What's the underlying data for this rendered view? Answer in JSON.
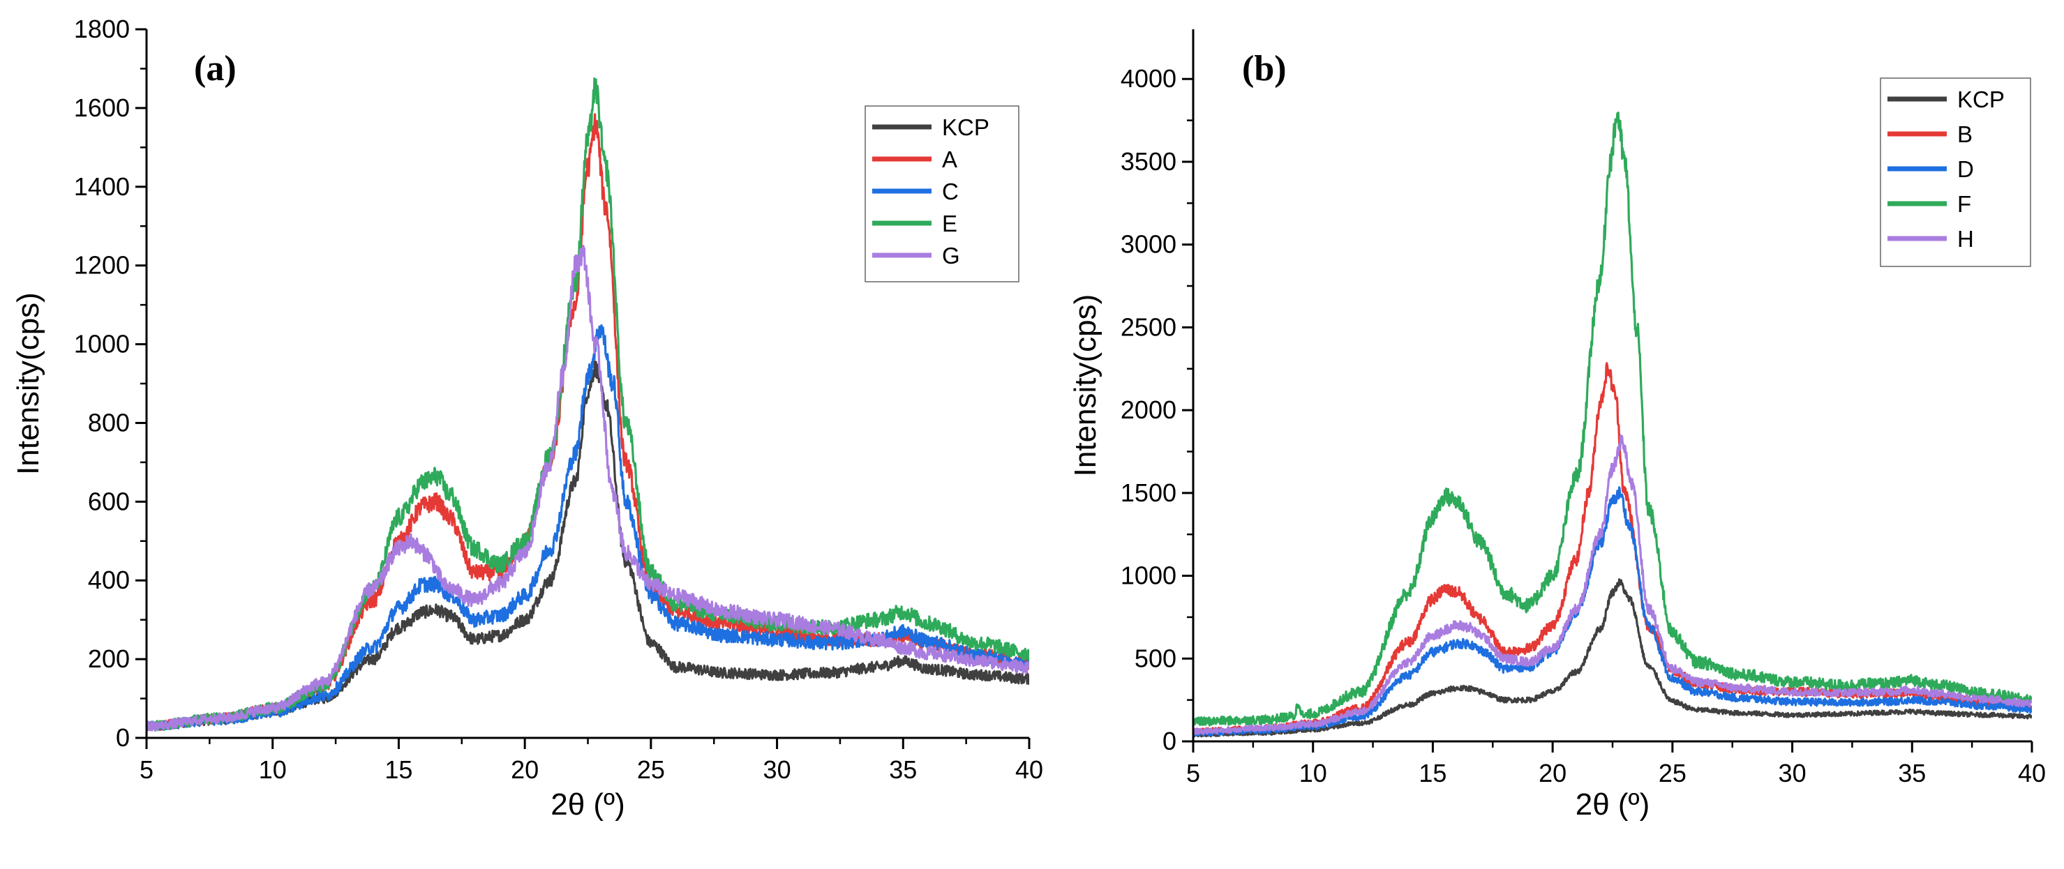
{
  "chart_data": [
    {
      "type": "line",
      "panel_label": "(a)",
      "xlabel": "2θ (º)",
      "ylabel": "Intensity(cps)",
      "xlim": [
        5,
        40
      ],
      "ylim": [
        0,
        1800
      ],
      "xticks": [
        5,
        10,
        15,
        20,
        25,
        30,
        35,
        40
      ],
      "yticks": [
        0,
        200,
        400,
        600,
        800,
        1000,
        1200,
        1400,
        1600,
        1800
      ],
      "legend_position": "top-right",
      "series": [
        {
          "name": "KCP",
          "color": "#404040",
          "noise": 12,
          "x": [
            5,
            8,
            10,
            12,
            14,
            15,
            16,
            16.5,
            17,
            18,
            19,
            20,
            21,
            22,
            22.5,
            22.8,
            23.2,
            24,
            25,
            26,
            28,
            30,
            32,
            34,
            35,
            36,
            38,
            40
          ],
          "y": [
            30,
            45,
            65,
            100,
            200,
            280,
            320,
            325,
            310,
            250,
            260,
            300,
            400,
            650,
            880,
            940,
            850,
            450,
            240,
            180,
            165,
            160,
            165,
            180,
            195,
            175,
            160,
            150
          ]
        },
        {
          "name": "A",
          "color": "#e53935",
          "noise": 14,
          "x": [
            5,
            8,
            10,
            12,
            14,
            15,
            16,
            16.5,
            17,
            18,
            19,
            20,
            21,
            22,
            22.5,
            22.8,
            23.2,
            24,
            25,
            26,
            28,
            30,
            32,
            34,
            35,
            36,
            38,
            40
          ],
          "y": [
            30,
            50,
            75,
            130,
            350,
            500,
            590,
            600,
            560,
            420,
            420,
            500,
            700,
            1100,
            1450,
            1560,
            1350,
            700,
            380,
            320,
            290,
            270,
            250,
            250,
            260,
            240,
            210,
            190
          ]
        },
        {
          "name": "C",
          "color": "#1e6fe0",
          "noise": 14,
          "x": [
            5,
            8,
            10,
            12,
            14,
            15,
            16,
            16.5,
            17,
            18,
            19,
            20,
            21,
            22,
            22.5,
            23,
            23.5,
            24,
            25,
            26,
            28,
            30,
            32,
            34,
            35,
            36,
            38,
            40
          ],
          "y": [
            30,
            45,
            65,
            105,
            230,
            330,
            390,
            390,
            365,
            300,
            310,
            360,
            480,
            720,
            920,
            1040,
            900,
            600,
            360,
            290,
            260,
            250,
            240,
            250,
            270,
            245,
            210,
            185
          ]
        },
        {
          "name": "E",
          "color": "#2eaa5a",
          "noise": 15,
          "x": [
            5,
            8,
            10,
            12,
            14,
            15,
            16,
            16.5,
            17,
            18,
            19,
            20,
            21,
            22,
            22.5,
            22.8,
            23.2,
            24,
            25,
            26,
            28,
            30,
            32,
            34,
            35,
            36,
            38,
            40
          ],
          "y": [
            30,
            50,
            75,
            130,
            380,
            560,
            650,
            665,
            620,
            480,
            440,
            500,
            720,
            1150,
            1520,
            1650,
            1450,
            800,
            420,
            340,
            310,
            290,
            280,
            300,
            320,
            290,
            240,
            215
          ]
        },
        {
          "name": "G",
          "color": "#a97de0",
          "noise": 14,
          "x": [
            5,
            8,
            10,
            12,
            14,
            15,
            15.5,
            16,
            17,
            18,
            19,
            20,
            21,
            21.5,
            22,
            22.3,
            22.8,
            23.5,
            24,
            25,
            26,
            28,
            30,
            32,
            34,
            35,
            36,
            38,
            40
          ],
          "y": [
            30,
            50,
            75,
            140,
            380,
            480,
            500,
            470,
            380,
            350,
            390,
            470,
            700,
            920,
            1200,
            1230,
            1000,
            620,
            470,
            390,
            360,
            320,
            300,
            280,
            250,
            230,
            215,
            195,
            180
          ]
        }
      ]
    },
    {
      "type": "line",
      "panel_label": "(b)",
      "xlabel": "2θ (º)",
      "ylabel": "Intensity(cps)",
      "xlim": [
        5,
        40
      ],
      "ylim": [
        0,
        4300
      ],
      "xticks": [
        5,
        10,
        15,
        20,
        25,
        30,
        35,
        40
      ],
      "yticks": [
        0,
        500,
        1000,
        1500,
        2000,
        2500,
        3000,
        3500,
        4000
      ],
      "legend_position": "top-right",
      "series": [
        {
          "name": "KCP",
          "color": "#404040",
          "noise": 12,
          "x": [
            5,
            8,
            10,
            12,
            14,
            15,
            16,
            16.5,
            17,
            18,
            19,
            20,
            21,
            22,
            22.5,
            22.8,
            23.2,
            24,
            25,
            26,
            28,
            30,
            32,
            34,
            35,
            36,
            38,
            40
          ],
          "y": [
            40,
            50,
            70,
            110,
            220,
            290,
            320,
            320,
            300,
            250,
            250,
            300,
            420,
            680,
            900,
            960,
            860,
            450,
            240,
            190,
            170,
            160,
            165,
            175,
            180,
            170,
            160,
            150
          ]
        },
        {
          "name": "B",
          "color": "#e53935",
          "noise": 20,
          "x": [
            5,
            8,
            10,
            12,
            14,
            15,
            15.5,
            16,
            17,
            18,
            19,
            20,
            21,
            21.5,
            22,
            22.3,
            22.6,
            23,
            24,
            25,
            26,
            28,
            30,
            32,
            34,
            35,
            36,
            38,
            40
          ],
          "y": [
            60,
            80,
            110,
            200,
            600,
            860,
            920,
            900,
            740,
            540,
            560,
            700,
            1100,
            1500,
            2050,
            2250,
            2100,
            1500,
            700,
            430,
            350,
            310,
            300,
            290,
            290,
            290,
            270,
            240,
            220
          ]
        },
        {
          "name": "D",
          "color": "#1e6fe0",
          "noise": 18,
          "x": [
            5,
            8,
            10,
            12,
            14,
            15,
            16,
            16.5,
            17,
            18,
            19,
            20,
            21,
            22,
            22.5,
            22.8,
            23.2,
            24,
            25,
            26,
            28,
            30,
            32,
            34,
            35,
            36,
            38,
            40
          ],
          "y": [
            50,
            65,
            90,
            150,
            400,
            540,
            590,
            590,
            550,
            440,
            450,
            540,
            780,
            1200,
            1450,
            1500,
            1300,
            700,
            380,
            300,
            260,
            240,
            235,
            240,
            250,
            240,
            215,
            195
          ]
        },
        {
          "name": "F",
          "color": "#2eaa5a",
          "noise": 25,
          "x": [
            5,
            8,
            9.2,
            9.4,
            9.6,
            10,
            12,
            14,
            15,
            15.5,
            16,
            17,
            18,
            19,
            20,
            21,
            22,
            22.4,
            22.7,
            23,
            23.5,
            24,
            25,
            26,
            28,
            30,
            32,
            34,
            35,
            36,
            38,
            40
          ],
          "y": [
            120,
            130,
            150,
            230,
            150,
            170,
            300,
            900,
            1350,
            1480,
            1450,
            1200,
            900,
            820,
            1000,
            1600,
            2800,
            3500,
            3780,
            3500,
            2500,
            1400,
            650,
            480,
            400,
            360,
            340,
            350,
            370,
            340,
            290,
            250
          ]
        },
        {
          "name": "H",
          "color": "#a97de0",
          "noise": 18,
          "x": [
            5,
            8,
            10,
            12,
            14,
            15,
            16,
            16.5,
            17,
            18,
            19,
            20,
            21,
            22,
            22.5,
            22.9,
            23.3,
            24,
            25,
            26,
            28,
            30,
            32,
            34,
            35,
            36,
            38,
            40
          ],
          "y": [
            60,
            80,
            105,
            180,
            480,
            640,
            700,
            690,
            640,
            500,
            480,
            560,
            800,
            1250,
            1650,
            1820,
            1550,
            800,
            440,
            360,
            320,
            300,
            295,
            300,
            310,
            290,
            255,
            230
          ]
        }
      ]
    }
  ]
}
